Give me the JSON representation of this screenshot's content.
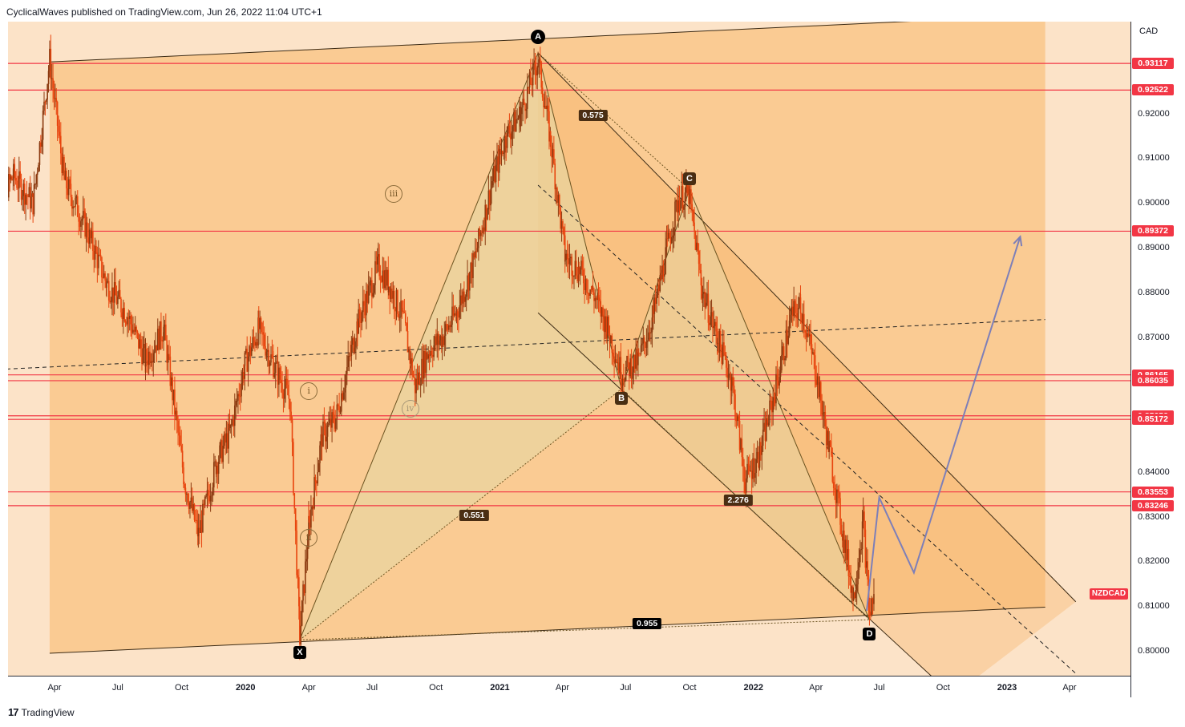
{
  "header": {
    "text": "CyclicalWaves published on TradingView.com, Jun 26, 2022 11:04 UTC+1"
  },
  "footer": {
    "logo_glyph": "17",
    "brand": "TradingView"
  },
  "symbol": "NZDCAD",
  "currency": "CAD",
  "colors": {
    "level_line": "#f23645",
    "channel_fill": "#f9c382",
    "pattern_fill": "#e8d4a0",
    "projection": "#7d7fb8",
    "background": "#fce3c8"
  },
  "chart_data": {
    "type": "candlestick-with-annotations",
    "title": "",
    "ylabel": "CAD",
    "ylim": [
      0.7945,
      0.9405
    ],
    "y_ticks": [
      "0.92000",
      "0.91000",
      "0.90000",
      "0.89000",
      "0.88000",
      "0.87000",
      "0.84000",
      "0.83000",
      "0.82000",
      "0.81000",
      "0.80000"
    ],
    "x_ticks": [
      {
        "label": "Apr",
        "date": "2019-04-01",
        "bold": false
      },
      {
        "label": "Jul",
        "date": "2019-07-01",
        "bold": false
      },
      {
        "label": "Oct",
        "date": "2019-10-01",
        "bold": false
      },
      {
        "label": "2020",
        "date": "2020-01-01",
        "bold": true
      },
      {
        "label": "Apr",
        "date": "2020-04-01",
        "bold": false
      },
      {
        "label": "Jul",
        "date": "2020-07-01",
        "bold": false
      },
      {
        "label": "Oct",
        "date": "2020-10-01",
        "bold": false
      },
      {
        "label": "2021",
        "date": "2021-01-01",
        "bold": true
      },
      {
        "label": "Apr",
        "date": "2021-04-01",
        "bold": false
      },
      {
        "label": "Jul",
        "date": "2021-07-01",
        "bold": false
      },
      {
        "label": "Oct",
        "date": "2021-10-01",
        "bold": false
      },
      {
        "label": "2022",
        "date": "2022-01-01",
        "bold": true
      },
      {
        "label": "Apr",
        "date": "2022-04-01",
        "bold": false
      },
      {
        "label": "Jul",
        "date": "2022-07-01",
        "bold": false
      },
      {
        "label": "Oct",
        "date": "2022-10-01",
        "bold": false
      },
      {
        "label": "2023",
        "date": "2023-01-01",
        "bold": true
      },
      {
        "label": "Apr",
        "date": "2023-04-01",
        "bold": false
      }
    ],
    "horizontal_levels": [
      "0.93117",
      "0.92522",
      "0.89372",
      "0.86165",
      "0.86035",
      "0.85252",
      "0.85172",
      "0.83553",
      "0.83246"
    ],
    "last_price_label": "NZDCAD",
    "last_price": 0.8128,
    "price_path": [
      [
        "2019-01-01",
        0.898
      ],
      [
        "2019-02-01",
        0.906
      ],
      [
        "2019-03-01",
        0.9
      ],
      [
        "2019-03-25",
        0.932
      ],
      [
        "2019-04-15",
        0.905
      ],
      [
        "2019-05-15",
        0.895
      ],
      [
        "2019-06-15",
        0.882
      ],
      [
        "2019-07-15",
        0.875
      ],
      [
        "2019-08-10",
        0.865
      ],
      [
        "2019-09-05",
        0.872
      ],
      [
        "2019-10-05",
        0.838
      ],
      [
        "2019-10-25",
        0.826
      ],
      [
        "2019-11-20",
        0.842
      ],
      [
        "2019-12-10",
        0.849
      ],
      [
        "2019-12-31",
        0.864
      ],
      [
        "2020-01-20",
        0.872
      ],
      [
        "2020-02-10",
        0.864
      ],
      [
        "2020-03-05",
        0.856
      ],
      [
        "2020-03-19",
        0.803
      ],
      [
        "2020-04-01",
        0.828
      ],
      [
        "2020-04-20",
        0.848
      ],
      [
        "2020-05-10",
        0.852
      ],
      [
        "2020-06-10",
        0.873
      ],
      [
        "2020-07-10",
        0.886
      ],
      [
        "2020-07-25",
        0.882
      ],
      [
        "2020-08-15",
        0.874
      ],
      [
        "2020-09-01",
        0.859
      ],
      [
        "2020-09-20",
        0.867
      ],
      [
        "2020-10-10",
        0.87
      ],
      [
        "2020-11-01",
        0.876
      ],
      [
        "2020-11-25",
        0.887
      ],
      [
        "2020-12-20",
        0.904
      ],
      [
        "2021-01-10",
        0.915
      ],
      [
        "2021-01-31",
        0.92
      ],
      [
        "2021-02-25",
        0.932
      ],
      [
        "2021-03-15",
        0.914
      ],
      [
        "2021-04-05",
        0.888
      ],
      [
        "2021-04-25",
        0.885
      ],
      [
        "2021-05-15",
        0.88
      ],
      [
        "2021-06-05",
        0.872
      ],
      [
        "2021-06-25",
        0.862
      ],
      [
        "2021-07-20",
        0.865
      ],
      [
        "2021-08-10",
        0.875
      ],
      [
        "2021-08-30",
        0.89
      ],
      [
        "2021-09-15",
        0.901
      ],
      [
        "2021-09-30",
        0.902
      ],
      [
        "2021-10-20",
        0.88
      ],
      [
        "2021-11-10",
        0.87
      ],
      [
        "2021-12-01",
        0.86
      ],
      [
        "2021-12-20",
        0.838
      ],
      [
        "2022-01-10",
        0.844
      ],
      [
        "2022-02-01",
        0.858
      ],
      [
        "2022-02-25",
        0.875
      ],
      [
        "2022-03-10",
        0.877
      ],
      [
        "2022-03-31",
        0.863
      ],
      [
        "2022-04-20",
        0.845
      ],
      [
        "2022-05-10",
        0.826
      ],
      [
        "2022-05-25",
        0.812
      ],
      [
        "2022-06-08",
        0.829
      ],
      [
        "2022-06-17",
        0.808
      ],
      [
        "2022-06-24",
        0.813
      ]
    ],
    "harmonic_pattern": {
      "points": [
        {
          "label": "X",
          "date": "2020-03-19",
          "price": 0.8025
        },
        {
          "label": "A",
          "date": "2021-02-25",
          "price": 0.9335
        },
        {
          "label": "B",
          "date": "2021-06-25",
          "price": 0.8585
        },
        {
          "label": "C",
          "date": "2021-10-01",
          "price": 0.903
        },
        {
          "label": "D",
          "date": "2022-06-17",
          "price": 0.807
        }
      ],
      "ratios": [
        {
          "value": "0.551",
          "date": "2020-11-25",
          "price": 0.8303
        },
        {
          "value": "0.575",
          "date": "2021-05-15",
          "price": 0.9195
        },
        {
          "value": "2.276",
          "date": "2021-12-10",
          "price": 0.8337
        },
        {
          "value": "0.955",
          "date": "2021-08-01",
          "price": 0.8062
        }
      ]
    },
    "wave_labels": [
      {
        "label": "i",
        "date": "2020-04-01",
        "price": 0.858,
        "faint": false
      },
      {
        "label": "ii",
        "date": "2020-04-01",
        "price": 0.8253,
        "faint": false
      },
      {
        "label": "iii",
        "date": "2020-08-01",
        "price": 0.902,
        "faint": false
      },
      {
        "label": "iv",
        "date": "2020-08-25",
        "price": 0.8541,
        "faint": true
      }
    ],
    "channel": {
      "upper": [
        [
          "2019-03-25",
          0.9315
        ],
        [
          "2023-02-25",
          0.942
        ]
      ],
      "lower": [
        [
          "2019-03-25",
          0.7995
        ],
        [
          "2023-02-25",
          0.8098
        ]
      ],
      "mid": [
        [
          "2019-01-01",
          0.8628
        ],
        [
          "2023-02-25",
          0.874
        ]
      ],
      "fill_end": "2023-02-25"
    },
    "descending_channel": {
      "upper": [
        [
          "2021-02-25",
          0.9335
        ],
        [
          "2023-04-10",
          0.811
        ]
      ],
      "lower": [
        [
          "2021-02-25",
          0.8755
        ],
        [
          "2022-10-15",
          0.79
        ]
      ],
      "mid": [
        [
          "2021-02-25",
          0.904
        ],
        [
          "2023-04-10",
          0.795
        ]
      ]
    },
    "projection_path": [
      [
        "2022-06-13",
        0.809
      ],
      [
        "2022-07-01",
        0.8343
      ],
      [
        "2022-08-20",
        0.8175
      ],
      [
        "2023-01-20",
        0.8925
      ]
    ]
  }
}
